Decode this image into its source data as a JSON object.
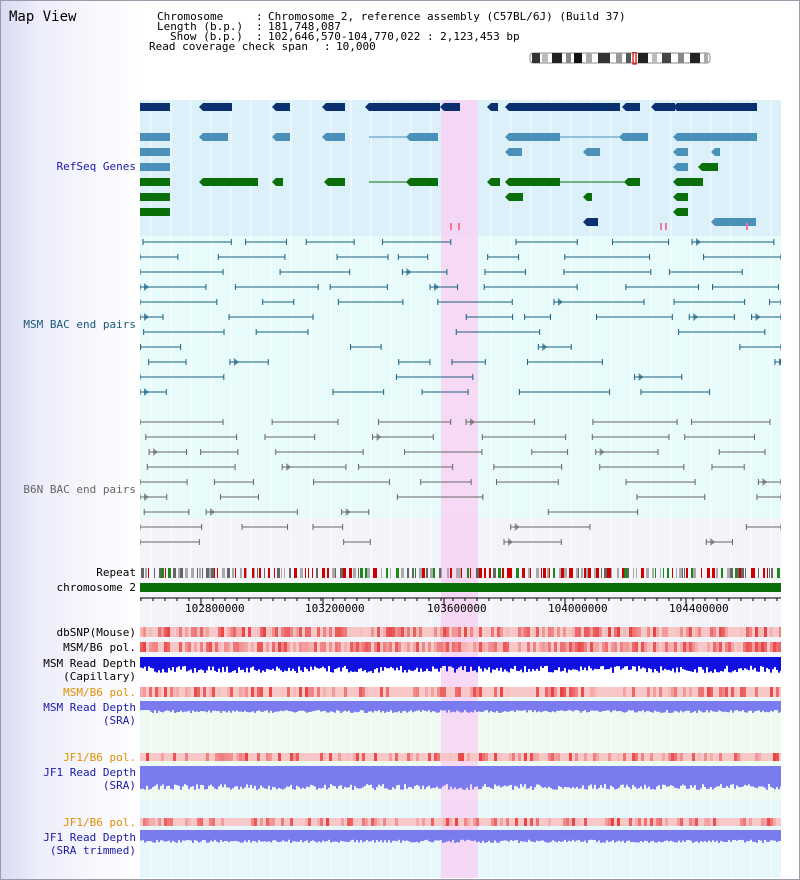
{
  "page": {
    "title": "Map View"
  },
  "info": {
    "chromosome_label": "Chromosome",
    "chromosome_value": "Chromosome 2, reference assembly (C57BL/6J) (Build 37)",
    "length_label": "Length (b.p.)",
    "length_value": "181,748,087",
    "show_label": "Show (b.p.)",
    "show_value": "102,646,570-104,770,022 : 2,123,453 bp",
    "coverage_label": "Read coverage check span",
    "coverage_value": "10,000"
  },
  "tracks": {
    "refseq": {
      "label": "RefSeq Genes",
      "color": "#1a1aa6"
    },
    "msm_bac": {
      "label": "MSM BAC end pairs",
      "color": "#1a5a7a"
    },
    "b6n_bac": {
      "label": "B6N BAC end pairs",
      "color": "#666666"
    },
    "repeat": {
      "label": "Repeat"
    },
    "chromosome": {
      "label": "chromosome 2"
    },
    "dbsnp": {
      "label": "dbSNP(Mouse)"
    },
    "msm_b6_pol_1": {
      "label": "MSM/B6 pol."
    },
    "msm_read_depth_cap": {
      "label": "MSM Read Depth (Capillary)",
      "line1": "MSM Read Depth",
      "line2": "(Capillary)"
    },
    "msm_b6_pol_2": {
      "label": "MSM/B6 pol.",
      "color": "#e09000"
    },
    "msm_read_depth_sra": {
      "line1": "MSM Read Depth",
      "line2": "(SRA)",
      "color": "#1a1aa6"
    },
    "jf1_b6_pol_1": {
      "label": "JF1/B6 pol.",
      "color": "#e09000"
    },
    "jf1_read_depth_sra": {
      "line1": "JF1 Read Depth",
      "line2": "(SRA)",
      "color": "#1a1aa6"
    },
    "jf1_b6_pol_2": {
      "label": "JF1/B6 pol.",
      "color": "#e09000"
    },
    "jf1_read_depth_trim": {
      "line1": "JF1 Read Depth",
      "line2": "(SRA trimmed)",
      "color": "#1a1aa6"
    }
  },
  "axis": {
    "ticks": [
      "102800000",
      "103200000",
      "103600000",
      "104000000",
      "104400000"
    ]
  },
  "colors": {
    "refseq_bg": "#dcf0fa",
    "msm_bg": "#e8fbfb",
    "b6n_bg": "#f2f4fa",
    "highlight": "#f7d2f3",
    "gene_dark": "#0a3070",
    "gene_mid": "#4a90b8",
    "gene_green": "#0a6e0a",
    "msm_line": "#1a6080",
    "b6n_line": "#666666",
    "chromosome_bar": "#0a6e0a",
    "depth_blue": "#1010e0",
    "depth_light": "#7b7bf0",
    "pol_red": "#e84040"
  }
}
